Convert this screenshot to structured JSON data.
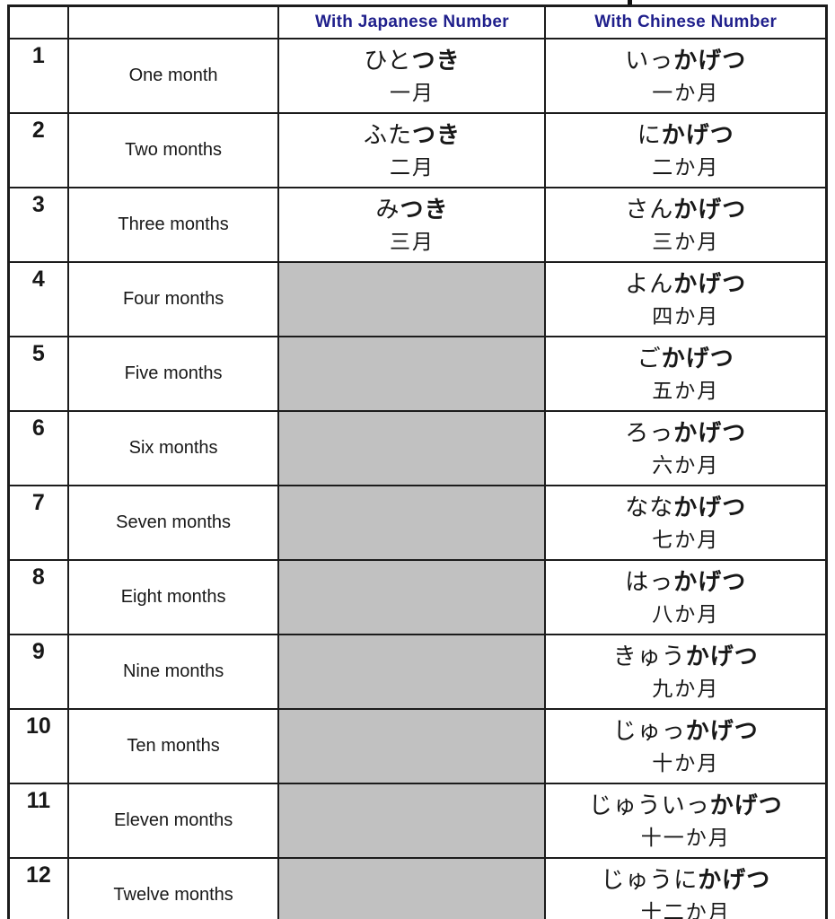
{
  "header": {
    "japanese_col": "With Japanese Number",
    "chinese_col": "With Chinese Number"
  },
  "colors": {
    "header_text": "#20208c",
    "body_text": "#181818",
    "grid_line": "#1c1c1c",
    "empty_cell_gray": "#c1c1c1"
  },
  "rows": [
    {
      "num": "1",
      "label": "One month",
      "japanese": {
        "prefix": "ひと",
        "bold": "つき",
        "kanji": "一月"
      },
      "chinese": {
        "prefix": "いっ",
        "bold": "かげつ",
        "kanji": "一か月"
      }
    },
    {
      "num": "2",
      "label": "Two months",
      "japanese": {
        "prefix": "ふた",
        "bold": "つき",
        "kanji": "二月"
      },
      "chinese": {
        "prefix": "に",
        "bold": "かげつ",
        "kanji": "二か月"
      }
    },
    {
      "num": "3",
      "label": "Three months",
      "japanese": {
        "prefix": "み",
        "bold": "つき",
        "kanji": "三月"
      },
      "chinese": {
        "prefix": "さん",
        "bold": "かげつ",
        "kanji": "三か月"
      }
    },
    {
      "num": "4",
      "label": "Four months",
      "japanese": null,
      "chinese": {
        "prefix": "よん",
        "bold": "かげつ",
        "kanji": "四か月"
      }
    },
    {
      "num": "5",
      "label": "Five months",
      "japanese": null,
      "chinese": {
        "prefix": "ご",
        "bold": "かげつ",
        "kanji": "五か月"
      }
    },
    {
      "num": "6",
      "label": "Six months",
      "japanese": null,
      "chinese": {
        "prefix": "ろっ",
        "bold": "かげつ",
        "kanji": "六か月"
      }
    },
    {
      "num": "7",
      "label": "Seven months",
      "japanese": null,
      "chinese": {
        "prefix": "なな",
        "bold": "かげつ",
        "kanji": "七か月"
      }
    },
    {
      "num": "8",
      "label": "Eight months",
      "japanese": null,
      "chinese": {
        "prefix": "はっ",
        "bold": "かげつ",
        "kanji": "八か月"
      }
    },
    {
      "num": "9",
      "label": "Nine months",
      "japanese": null,
      "chinese": {
        "prefix": "きゅう",
        "bold": "かげつ",
        "kanji": "九か月"
      }
    },
    {
      "num": "10",
      "label": "Ten months",
      "japanese": null,
      "chinese": {
        "prefix": "じゅっ",
        "bold": "かげつ",
        "kanji": "十か月"
      }
    },
    {
      "num": "11",
      "label": "Eleven months",
      "japanese": null,
      "chinese": {
        "prefix": "じゅういっ",
        "bold": "かげつ",
        "kanji": "十一か月"
      }
    },
    {
      "num": "12",
      "label": "Twelve months",
      "japanese": null,
      "chinese": {
        "prefix": "じゅうに",
        "bold": "かげつ",
        "kanji": "十二か月"
      }
    }
  ]
}
